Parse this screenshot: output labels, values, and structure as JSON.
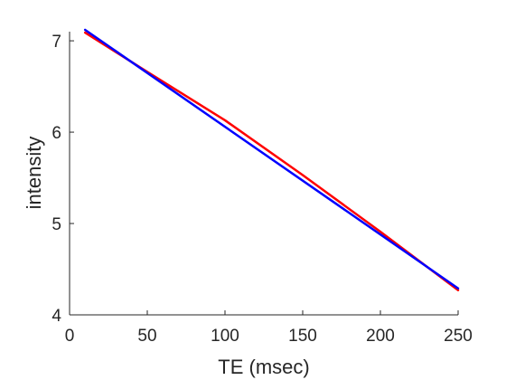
{
  "chart_data": {
    "type": "line",
    "title": "",
    "xlabel": "TE (msec)",
    "ylabel": "intensity",
    "xlim": [
      0,
      250
    ],
    "ylim": [
      4,
      7.1
    ],
    "x_ticks": [
      0,
      50,
      100,
      150,
      200,
      250
    ],
    "y_ticks": [
      4,
      5,
      6,
      7
    ],
    "x_tick_labels": [
      "0",
      "50",
      "100",
      "150",
      "200",
      "250"
    ],
    "y_tick_labels": [
      "4",
      "5",
      "6",
      "7"
    ],
    "grid": false,
    "legend": "none",
    "series": [
      {
        "color": "#ff0000",
        "x": [
          10,
          50,
          100,
          150,
          200,
          250
        ],
        "y": [
          7.09,
          6.66,
          6.13,
          5.53,
          4.91,
          4.27
        ]
      },
      {
        "color": "#0000ff",
        "x": [
          10,
          250
        ],
        "y": [
          7.12,
          4.29
        ]
      }
    ]
  }
}
